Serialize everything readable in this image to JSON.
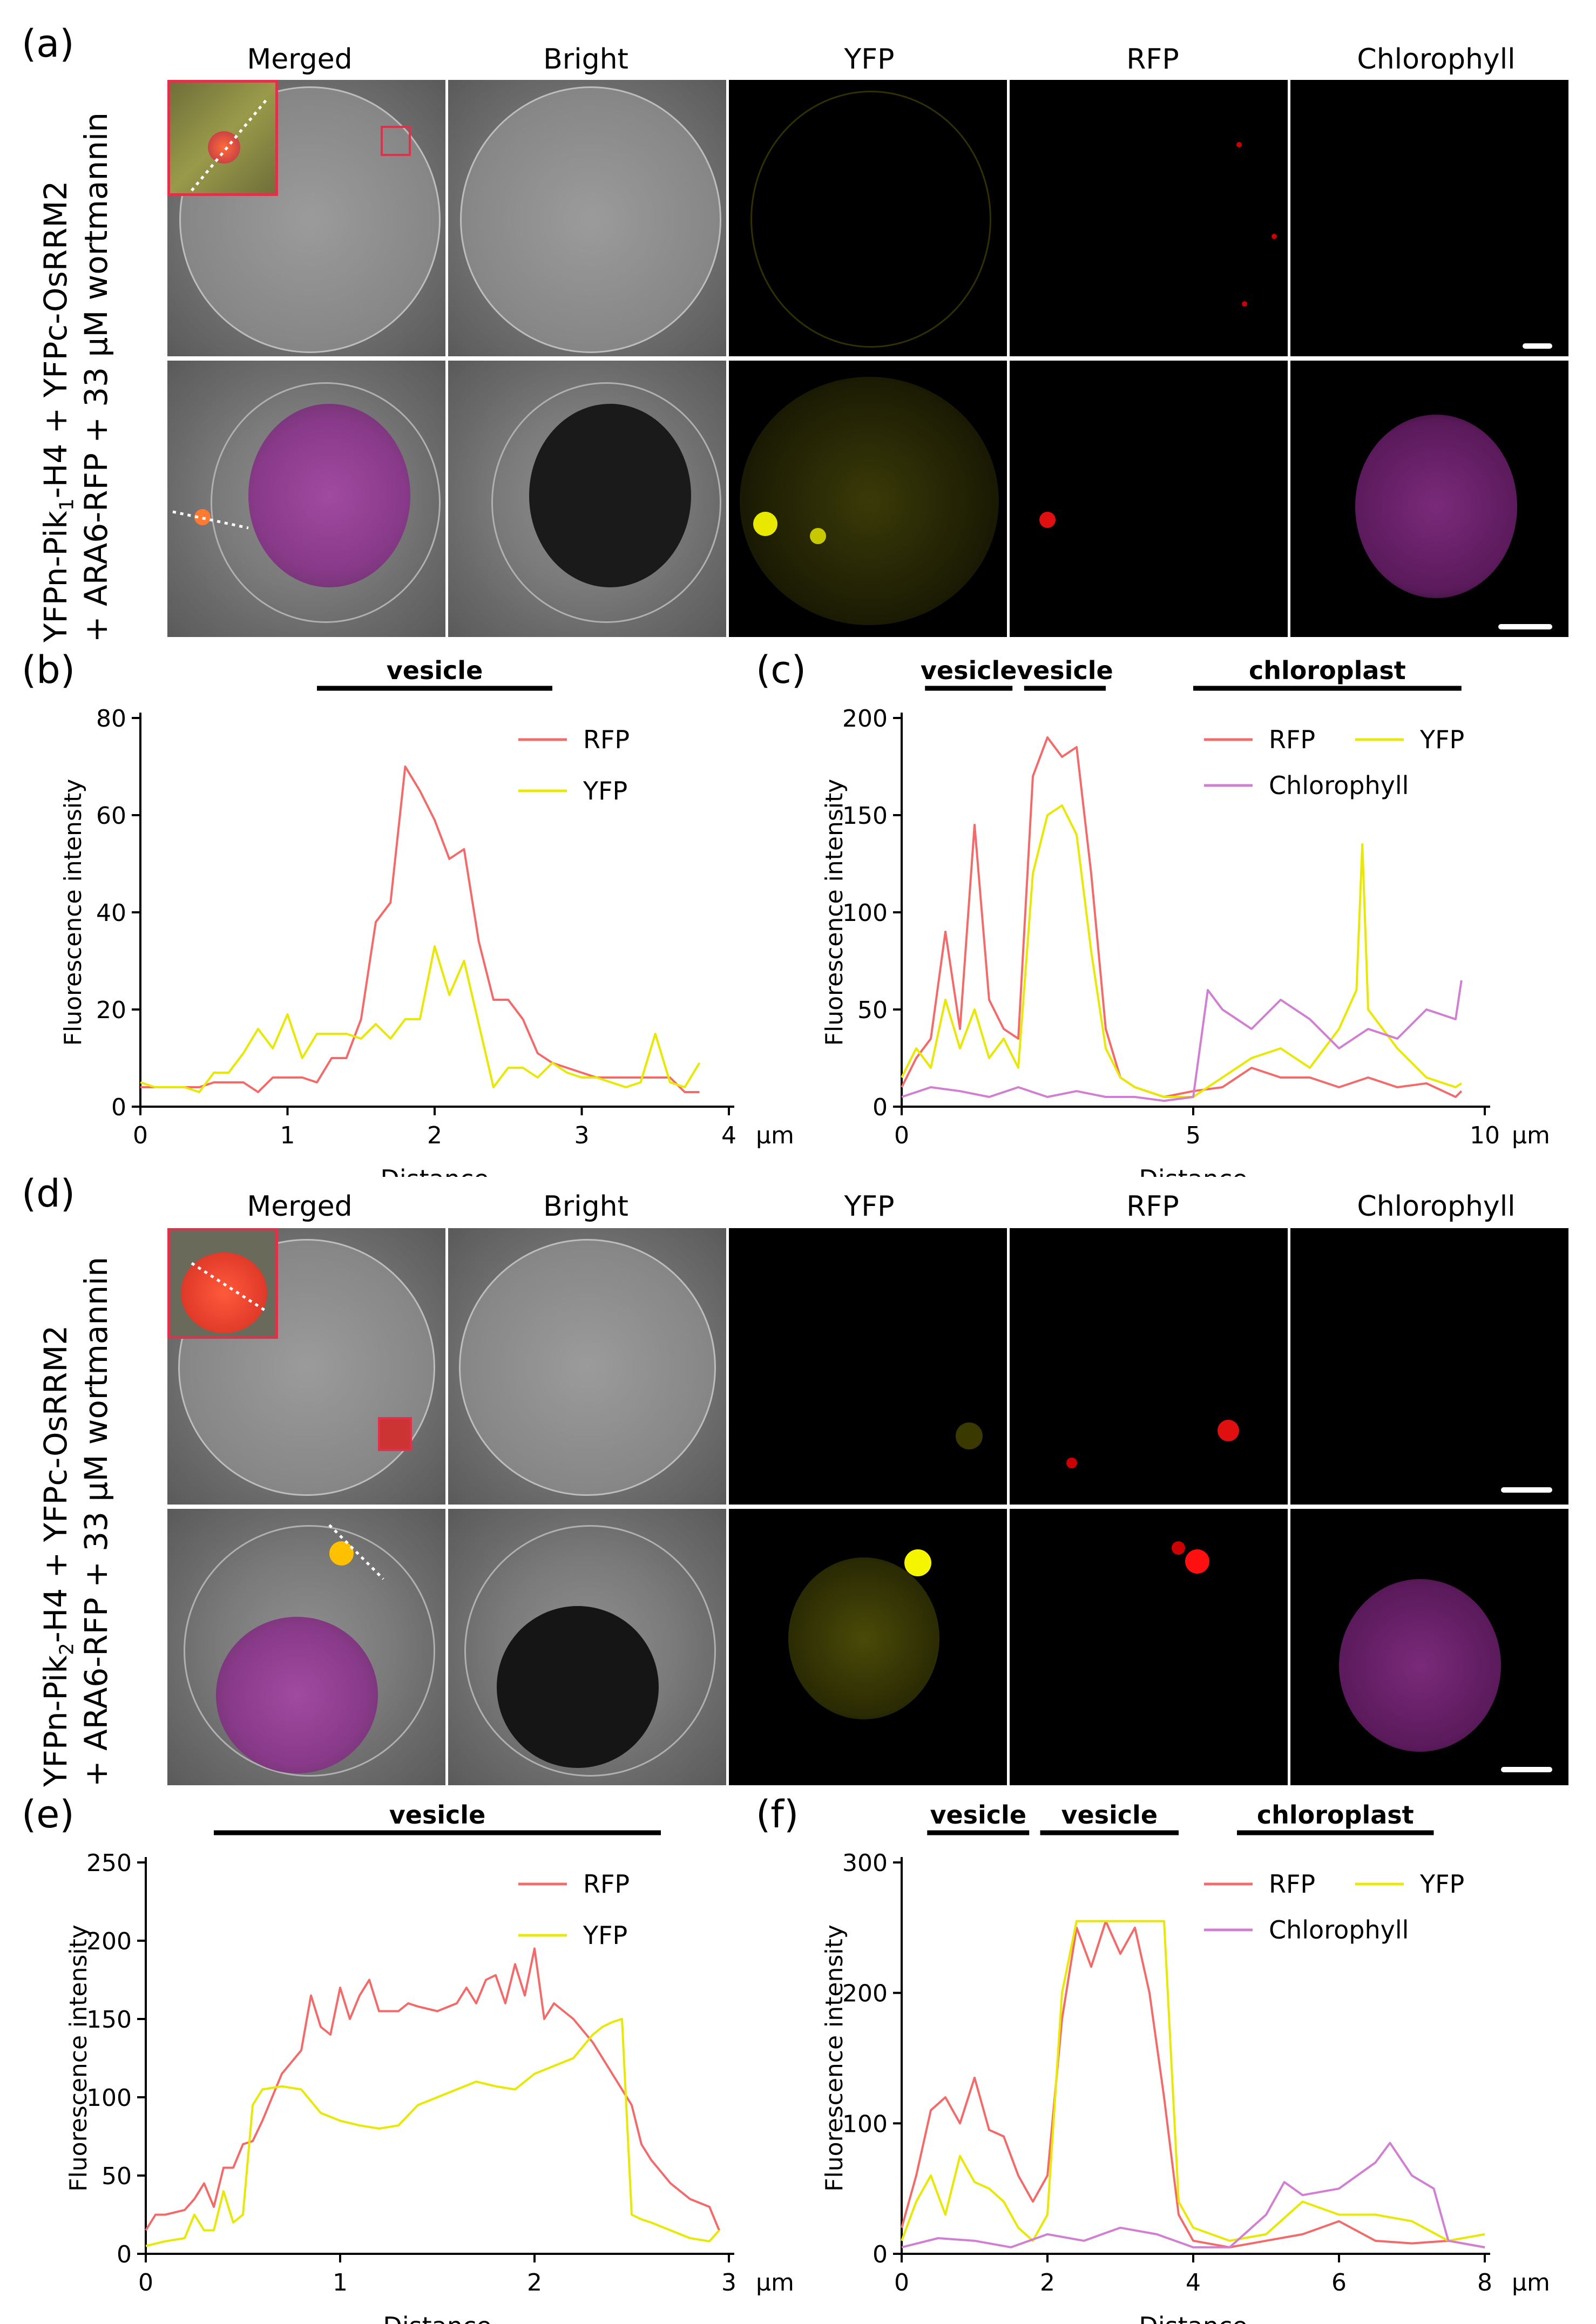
{
  "panels": {
    "a": "(a)",
    "b": "(b)",
    "c": "(c)",
    "d": "(d)",
    "e": "(e)",
    "f": "(f)"
  },
  "columns": [
    "Merged",
    "Bright",
    "YFP",
    "RFP",
    "Chlorophyll"
  ],
  "row_label_top": {
    "line1_pre": "YFPn-Pik",
    "line1_sub": "1",
    "line1_post": "-H4 + YFPc-OsRRM2",
    "line2": "+ ARA6-RFP + 33 μM wortmannin"
  },
  "row_label_bottom": {
    "line1_pre": "YFPn-Pik",
    "line1_sub": "2",
    "line1_post": "-H4 + YFPc-OsRRM2",
    "line2": "+ ARA6-RFP + 33 μM wortmannin"
  },
  "colors": {
    "rfp": "#f26a6a",
    "yfp": "#e8e800",
    "chl": "#d17fd1",
    "inset_border": "#e0304a"
  },
  "chart_data": [
    {
      "id": "b",
      "type": "line",
      "xlabel": "Distance",
      "ylabel": "Fluorescence intensity",
      "xunit": "μm",
      "xlim": [
        0,
        4
      ],
      "ylim": [
        0,
        80
      ],
      "xticks": [
        0,
        1,
        2,
        3,
        4
      ],
      "yticks": [
        0,
        20,
        40,
        60,
        80
      ],
      "annotations": [
        {
          "label": "vesicle",
          "from": 1.2,
          "to": 2.8
        }
      ],
      "legend": "top-right",
      "series": [
        {
          "name": "RFP",
          "color": "#f26a6a",
          "x": [
            0,
            0.1,
            0.2,
            0.3,
            0.4,
            0.5,
            0.6,
            0.7,
            0.8,
            0.9,
            1.0,
            1.1,
            1.2,
            1.3,
            1.4,
            1.5,
            1.6,
            1.7,
            1.8,
            1.9,
            2.0,
            2.1,
            2.2,
            2.3,
            2.4,
            2.5,
            2.6,
            2.7,
            2.8,
            2.9,
            3.0,
            3.1,
            3.2,
            3.3,
            3.4,
            3.5,
            3.6,
            3.7,
            3.8
          ],
          "y": [
            4,
            4,
            4,
            4,
            4,
            5,
            5,
            5,
            3,
            6,
            6,
            6,
            5,
            10,
            10,
            18,
            38,
            42,
            70,
            65,
            59,
            51,
            53,
            34,
            22,
            22,
            18,
            11,
            9,
            8,
            7,
            6,
            6,
            6,
            6,
            6,
            6,
            3,
            3
          ]
        },
        {
          "name": "YFP",
          "color": "#e8e800",
          "x": [
            0,
            0.1,
            0.2,
            0.3,
            0.4,
            0.5,
            0.6,
            0.7,
            0.8,
            0.9,
            1.0,
            1.1,
            1.2,
            1.3,
            1.4,
            1.5,
            1.6,
            1.7,
            1.8,
            1.9,
            2.0,
            2.1,
            2.2,
            2.3,
            2.4,
            2.5,
            2.6,
            2.7,
            2.8,
            2.9,
            3.0,
            3.1,
            3.2,
            3.3,
            3.4,
            3.5,
            3.6,
            3.7,
            3.8
          ],
          "y": [
            5,
            4,
            4,
            4,
            3,
            7,
            7,
            11,
            16,
            12,
            19,
            10,
            15,
            15,
            15,
            14,
            17,
            14,
            18,
            18,
            33,
            23,
            30,
            17,
            4,
            8,
            8,
            6,
            9,
            7,
            6,
            6,
            5,
            4,
            5,
            15,
            5,
            4,
            9
          ]
        }
      ]
    },
    {
      "id": "c",
      "type": "line",
      "xlabel": "Distance",
      "ylabel": "Fluorescence intensity",
      "xunit": "μm",
      "xlim": [
        0,
        10
      ],
      "ylim": [
        0,
        200
      ],
      "xticks": [
        0,
        5,
        10
      ],
      "yticks": [
        0,
        50,
        100,
        150,
        200
      ],
      "annotations": [
        {
          "label": "vesicle",
          "from": 0.4,
          "to": 1.9
        },
        {
          "label": "vesicle",
          "from": 2.1,
          "to": 3.5
        },
        {
          "label": "chloroplast",
          "from": 5.0,
          "to": 9.6
        }
      ],
      "legend": "top-right",
      "series": [
        {
          "name": "RFP",
          "color": "#f26a6a",
          "x": [
            0,
            0.25,
            0.5,
            0.75,
            1.0,
            1.25,
            1.5,
            1.75,
            2.0,
            2.25,
            2.5,
            2.75,
            3.0,
            3.25,
            3.5,
            3.75,
            4.0,
            4.5,
            5.0,
            5.5,
            6.0,
            6.5,
            7.0,
            7.5,
            8.0,
            8.5,
            9.0,
            9.5,
            9.6
          ],
          "y": [
            10,
            25,
            35,
            90,
            40,
            145,
            55,
            40,
            35,
            170,
            190,
            180,
            185,
            120,
            40,
            15,
            10,
            5,
            8,
            10,
            20,
            15,
            15,
            10,
            15,
            10,
            12,
            5,
            8
          ]
        },
        {
          "name": "YFP",
          "color": "#e8e800",
          "x": [
            0,
            0.25,
            0.5,
            0.75,
            1.0,
            1.25,
            1.5,
            1.75,
            2.0,
            2.25,
            2.5,
            2.75,
            3.0,
            3.25,
            3.5,
            3.75,
            4.0,
            4.5,
            5.0,
            5.5,
            6.0,
            6.5,
            7.0,
            7.5,
            7.8,
            7.9,
            8.0,
            8.5,
            9.0,
            9.5,
            9.6
          ],
          "y": [
            15,
            30,
            20,
            55,
            30,
            50,
            25,
            35,
            20,
            120,
            150,
            155,
            140,
            80,
            30,
            15,
            10,
            5,
            5,
            15,
            25,
            30,
            20,
            40,
            60,
            135,
            50,
            30,
            15,
            10,
            12
          ]
        },
        {
          "name": "Chlorophyll",
          "color": "#d17fd1",
          "x": [
            0,
            0.5,
            1.0,
            1.5,
            2.0,
            2.5,
            3.0,
            3.5,
            4.0,
            4.5,
            5.0,
            5.25,
            5.5,
            6.0,
            6.5,
            7.0,
            7.5,
            8.0,
            8.5,
            9.0,
            9.5,
            9.6
          ],
          "y": [
            5,
            10,
            8,
            5,
            10,
            5,
            8,
            5,
            5,
            3,
            5,
            60,
            50,
            40,
            55,
            45,
            30,
            40,
            35,
            50,
            45,
            65
          ]
        }
      ]
    },
    {
      "id": "e",
      "type": "line",
      "xlabel": "Distance",
      "ylabel": "Fluorescence intensity",
      "xunit": "μm",
      "xlim": [
        0,
        3
      ],
      "ylim": [
        0,
        250
      ],
      "xticks": [
        0,
        1,
        2,
        3
      ],
      "yticks": [
        0,
        50,
        100,
        150,
        200,
        250
      ],
      "annotations": [
        {
          "label": "vesicle",
          "from": 0.35,
          "to": 2.65
        }
      ],
      "legend": "top-right",
      "series": [
        {
          "name": "RFP",
          "color": "#f26a6a",
          "x": [
            0,
            0.05,
            0.1,
            0.2,
            0.25,
            0.3,
            0.35,
            0.4,
            0.45,
            0.5,
            0.55,
            0.6,
            0.7,
            0.8,
            0.85,
            0.9,
            0.95,
            1.0,
            1.05,
            1.1,
            1.15,
            1.2,
            1.3,
            1.35,
            1.4,
            1.5,
            1.6,
            1.65,
            1.7,
            1.75,
            1.8,
            1.85,
            1.9,
            1.95,
            2.0,
            2.05,
            2.1,
            2.15,
            2.2,
            2.3,
            2.4,
            2.5,
            2.55,
            2.6,
            2.7,
            2.8,
            2.9,
            2.95
          ],
          "y": [
            15,
            25,
            25,
            28,
            35,
            45,
            30,
            55,
            55,
            70,
            72,
            85,
            115,
            130,
            165,
            145,
            140,
            170,
            150,
            165,
            175,
            155,
            155,
            160,
            158,
            155,
            160,
            170,
            160,
            175,
            178,
            160,
            185,
            165,
            195,
            150,
            160,
            155,
            150,
            135,
            115,
            95,
            70,
            60,
            45,
            35,
            30,
            15
          ]
        },
        {
          "name": "YFP",
          "color": "#e8e800",
          "x": [
            0,
            0.1,
            0.2,
            0.25,
            0.3,
            0.35,
            0.4,
            0.45,
            0.5,
            0.55,
            0.6,
            0.7,
            0.8,
            0.9,
            1.0,
            1.1,
            1.2,
            1.3,
            1.4,
            1.5,
            1.6,
            1.7,
            1.8,
            1.9,
            2.0,
            2.1,
            2.2,
            2.3,
            2.35,
            2.4,
            2.45,
            2.5,
            2.55,
            2.6,
            2.7,
            2.8,
            2.9,
            2.95
          ],
          "y": [
            5,
            8,
            10,
            25,
            15,
            15,
            40,
            20,
            25,
            95,
            105,
            107,
            105,
            90,
            85,
            82,
            80,
            82,
            95,
            100,
            105,
            110,
            107,
            105,
            115,
            120,
            125,
            140,
            145,
            148,
            150,
            25,
            22,
            20,
            15,
            10,
            8,
            15
          ]
        }
      ]
    },
    {
      "id": "f",
      "type": "line",
      "xlabel": "Distance",
      "ylabel": "Fluorescence intensity",
      "xunit": "μm",
      "xlim": [
        0,
        8
      ],
      "ylim": [
        0,
        300
      ],
      "xticks": [
        0,
        2,
        4,
        6,
        8
      ],
      "yticks": [
        0,
        100,
        200,
        300
      ],
      "annotations": [
        {
          "label": "vesicle",
          "from": 0.35,
          "to": 1.75
        },
        {
          "label": "vesicle",
          "from": 1.9,
          "to": 3.8
        },
        {
          "label": "chloroplast",
          "from": 4.6,
          "to": 7.3
        }
      ],
      "legend": "top-right",
      "series": [
        {
          "name": "RFP",
          "color": "#f26a6a",
          "x": [
            0,
            0.2,
            0.4,
            0.6,
            0.8,
            1.0,
            1.2,
            1.4,
            1.6,
            1.8,
            2.0,
            2.2,
            2.4,
            2.6,
            2.8,
            3.0,
            3.2,
            3.4,
            3.6,
            3.8,
            4.0,
            4.5,
            5.0,
            5.5,
            6.0,
            6.5,
            7.0,
            7.5,
            8.0
          ],
          "y": [
            20,
            60,
            110,
            120,
            100,
            135,
            95,
            90,
            60,
            40,
            60,
            180,
            250,
            220,
            255,
            230,
            250,
            200,
            120,
            30,
            10,
            5,
            10,
            15,
            25,
            10,
            8,
            10,
            5
          ]
        },
        {
          "name": "YFP",
          "color": "#e8e800",
          "x": [
            0,
            0.2,
            0.4,
            0.6,
            0.8,
            1.0,
            1.2,
            1.4,
            1.6,
            1.8,
            2.0,
            2.2,
            2.4,
            2.6,
            2.8,
            3.0,
            3.2,
            3.4,
            3.6,
            3.8,
            4.0,
            4.5,
            5.0,
            5.5,
            6.0,
            6.5,
            7.0,
            7.5,
            8.0
          ],
          "y": [
            10,
            40,
            60,
            30,
            75,
            55,
            50,
            40,
            20,
            10,
            30,
            200,
            255,
            255,
            255,
            255,
            255,
            255,
            255,
            40,
            20,
            10,
            15,
            40,
            30,
            30,
            25,
            10,
            15
          ]
        },
        {
          "name": "Chlorophyll",
          "color": "#d17fd1",
          "x": [
            0,
            0.5,
            1.0,
            1.5,
            2.0,
            2.5,
            3.0,
            3.5,
            4.0,
            4.5,
            5.0,
            5.25,
            5.5,
            6.0,
            6.5,
            6.7,
            7.0,
            7.3,
            7.5,
            8.0
          ],
          "y": [
            5,
            12,
            10,
            5,
            15,
            10,
            20,
            15,
            5,
            5,
            30,
            55,
            45,
            50,
            70,
            85,
            60,
            50,
            10,
            5
          ]
        }
      ]
    }
  ]
}
